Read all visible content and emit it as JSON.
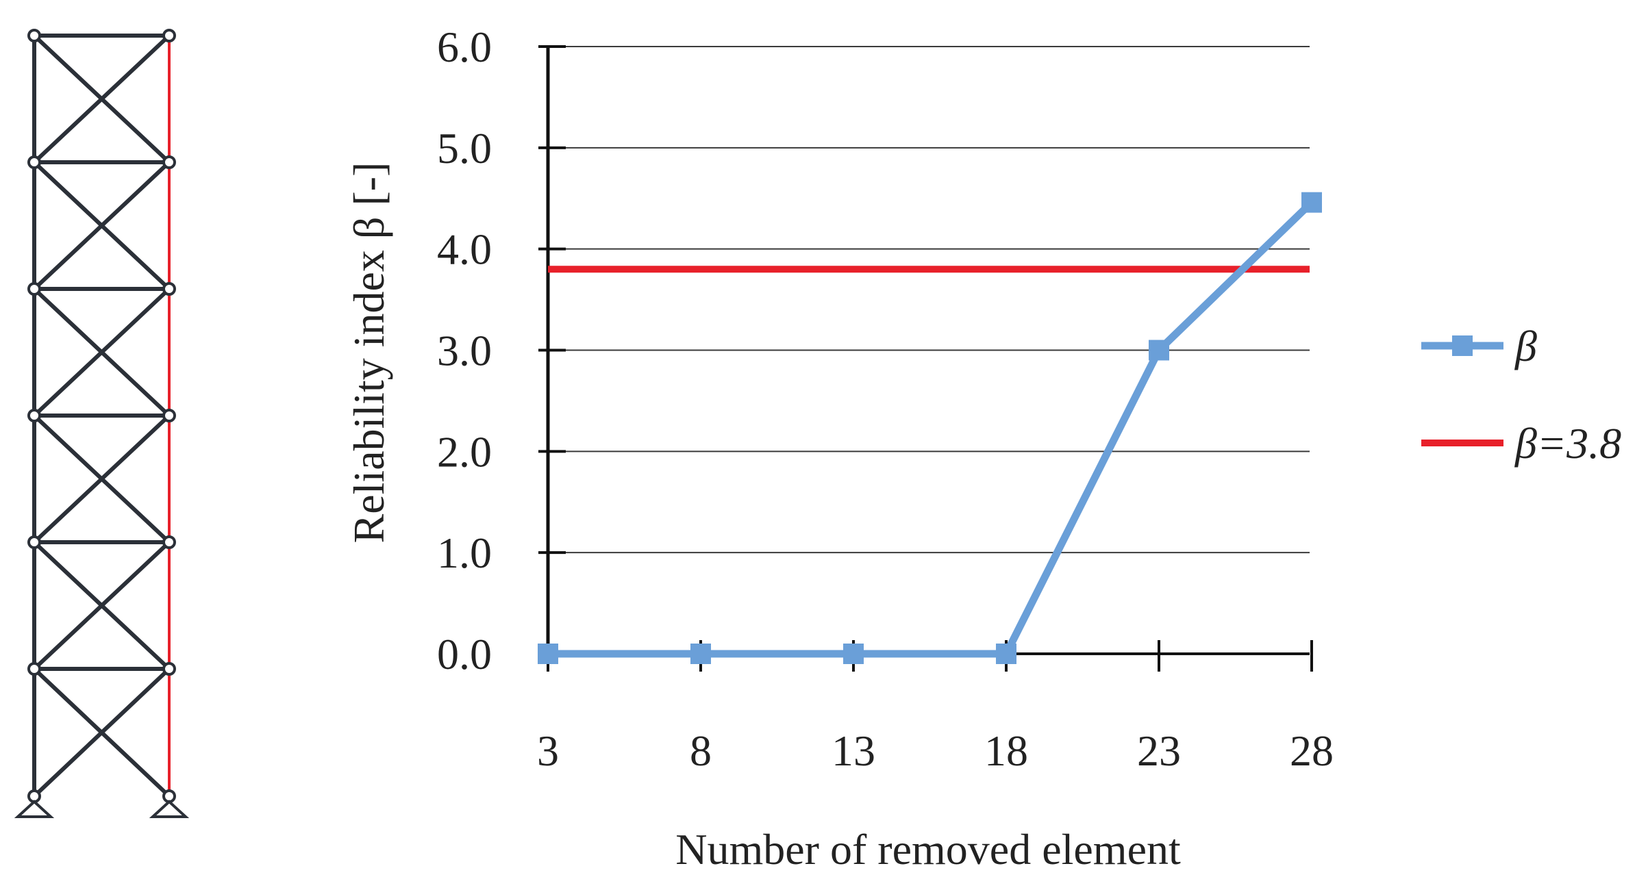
{
  "chart_data": {
    "type": "line",
    "xlabel": "Number of removed element",
    "ylabel": "Reliability index β [-]",
    "categories": [
      "3",
      "8",
      "13",
      "18",
      "23",
      "28"
    ],
    "ylim": [
      0,
      6
    ],
    "y_ticks": [
      "0.0",
      "1.0",
      "2.0",
      "3.0",
      "4.0",
      "5.0",
      "6.0"
    ],
    "grid": "horizontal",
    "legend_position": "right",
    "series": [
      {
        "name": "β",
        "color": "#6a9fd8",
        "marker": "square",
        "values": [
          0.0,
          0.0,
          0.0,
          0.0,
          3.0,
          4.46
        ]
      },
      {
        "name": "β=3.8",
        "color": "#e8202a",
        "marker": "none",
        "constant": 3.8
      }
    ]
  },
  "frame_diagram": {
    "line_color": "#2b3038",
    "highlight_color": "#e8202a",
    "highlighted_member": "right-column"
  }
}
